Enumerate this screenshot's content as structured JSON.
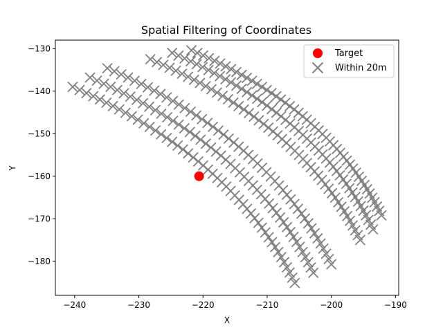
{
  "chart_data": {
    "type": "scatter",
    "title": "Spatial Filtering of Coordinates",
    "xlabel": "X",
    "ylabel": "Y",
    "xlim": [
      -243.0,
      -189.5
    ],
    "ylim": [
      -188.0,
      -128.0
    ],
    "xticks": [
      -240,
      -230,
      -220,
      -210,
      -200,
      -190
    ],
    "yticks": [
      -130,
      -140,
      -150,
      -160,
      -170,
      -180
    ],
    "xtick_labels": [
      "−240",
      "−230",
      "−220",
      "−210",
      "−200",
      "−190"
    ],
    "ytick_labels": [
      "−130",
      "−140",
      "−150",
      "−160",
      "−170",
      "−180"
    ],
    "grid": false,
    "legend_position": "top-right",
    "legend": [
      {
        "label": "Target",
        "marker": "circle",
        "color": "#ff0000"
      },
      {
        "label": "Within 20m",
        "marker": "x",
        "color": "#808080"
      }
    ],
    "target": {
      "x": -220.6,
      "y": -160.0
    },
    "arcs": [
      {
        "start": [
          -240.3,
          -139.0
        ],
        "end": [
          -205.7,
          -185.1
        ]
      },
      {
        "start": [
          -237.6,
          -136.8
        ],
        "end": [
          -202.8,
          -182.7
        ]
      },
      {
        "start": [
          -234.9,
          -134.6
        ],
        "end": [
          -200.0,
          -180.7
        ]
      },
      {
        "start": [
          -228.2,
          -132.5
        ],
        "end": [
          -195.5,
          -175.0
        ]
      },
      {
        "start": [
          -224.8,
          -131.0
        ],
        "end": [
          -193.5,
          -172.5
        ]
      },
      {
        "start": [
          -221.8,
          -130.4
        ],
        "end": [
          -192.2,
          -169.2
        ]
      }
    ],
    "points_per_arc": 48
  }
}
